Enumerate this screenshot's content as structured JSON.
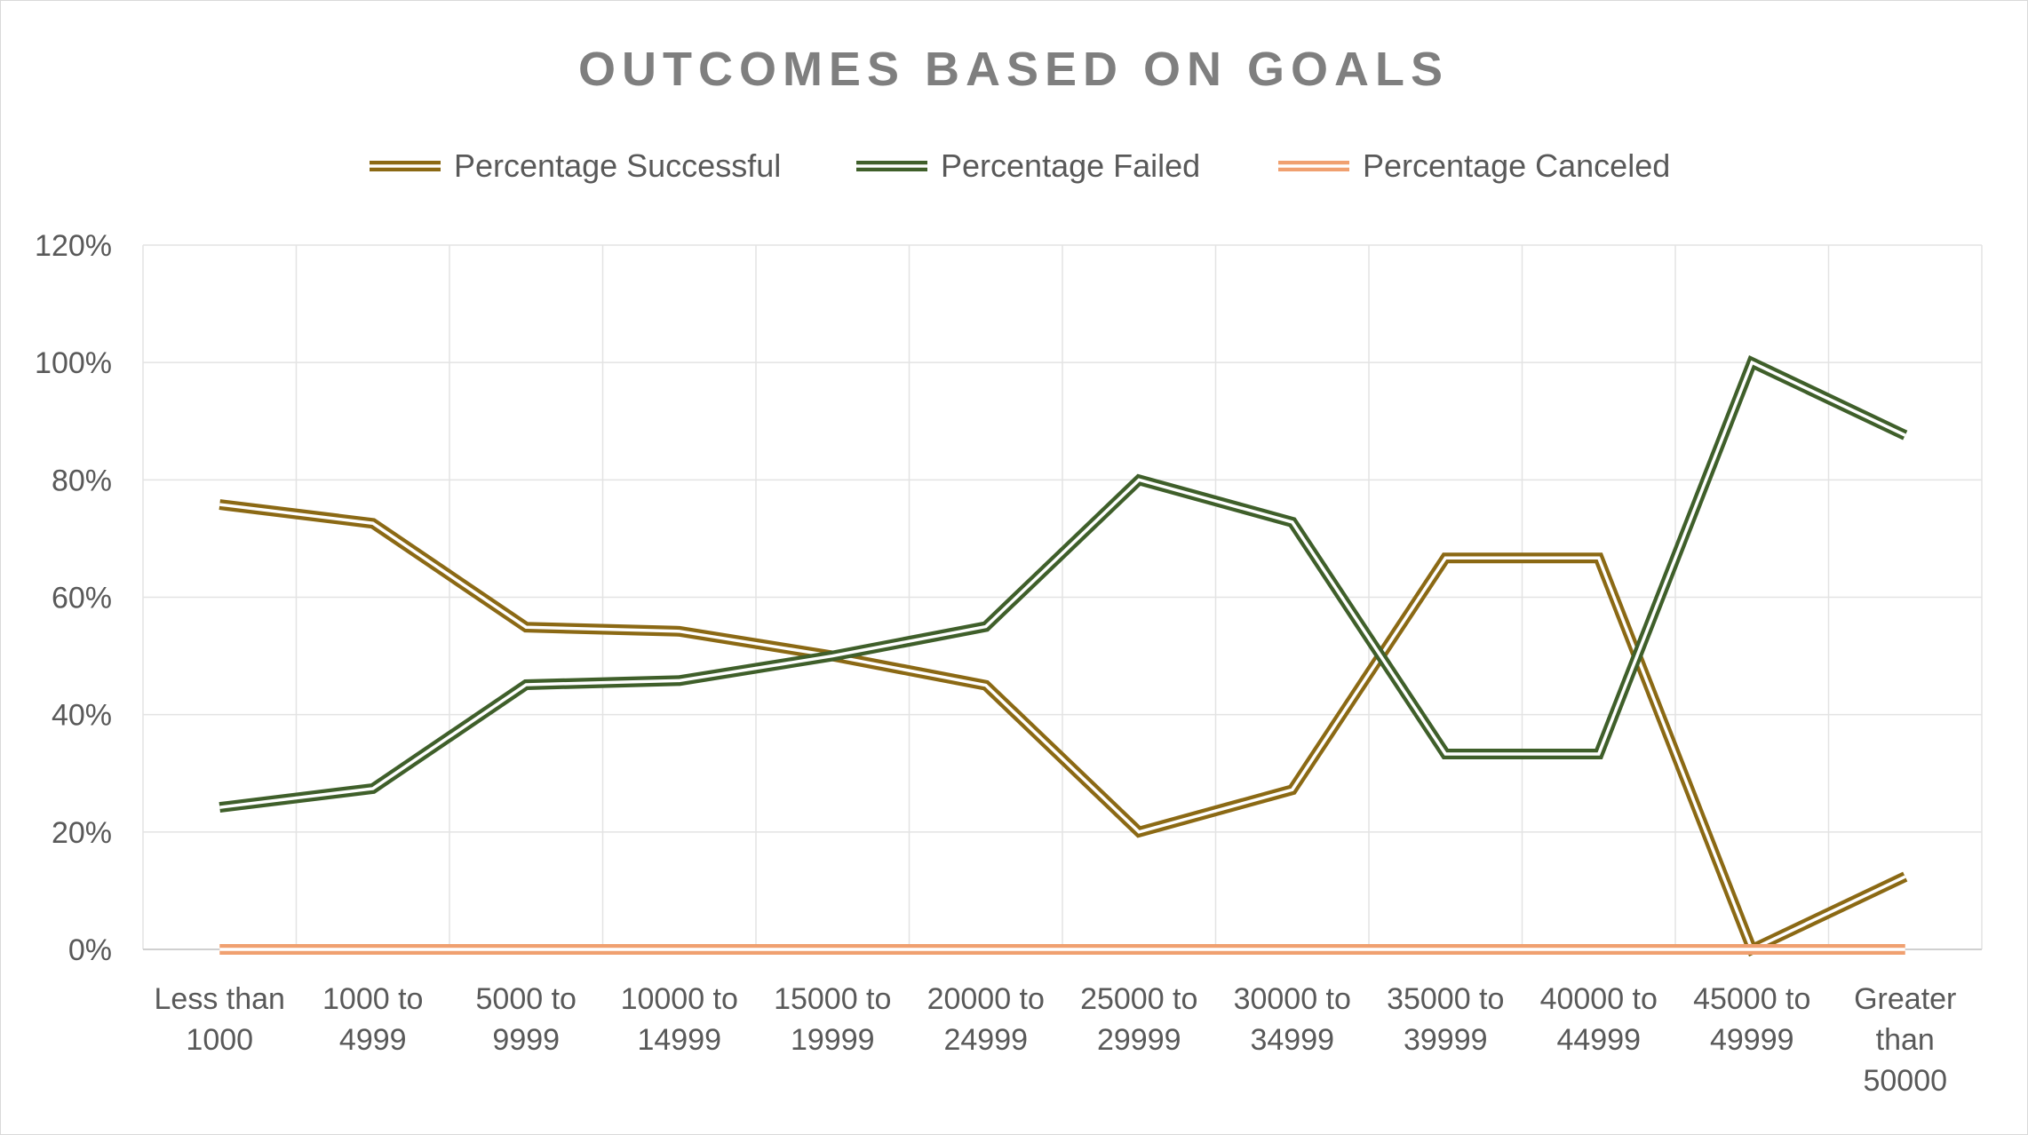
{
  "chart_data": {
    "type": "line",
    "title": "OUTCOMES BASED ON GOALS",
    "categories": [
      [
        "Less than",
        "1000"
      ],
      [
        "1000 to",
        "4999"
      ],
      [
        "5000 to",
        "9999"
      ],
      [
        "10000 to",
        "14999"
      ],
      [
        "15000 to",
        "19999"
      ],
      [
        "20000 to",
        "24999"
      ],
      [
        "25000 to",
        "29999"
      ],
      [
        "30000 to",
        "34999"
      ],
      [
        "35000 to",
        "39999"
      ],
      [
        "40000 to",
        "44999"
      ],
      [
        "45000 to",
        "49999"
      ],
      [
        "Greater",
        "than",
        "50000"
      ]
    ],
    "series": [
      {
        "name": "Percentage Successful",
        "color": "#8b6914",
        "values": [
          0.758,
          0.726,
          0.549,
          0.542,
          0.5,
          0.45,
          0.2,
          0.272,
          0.667,
          0.667,
          0.0,
          0.124
        ]
      },
      {
        "name": "Percentage Failed",
        "color": "#3f5f2a",
        "values": [
          0.242,
          0.274,
          0.451,
          0.458,
          0.5,
          0.55,
          0.8,
          0.728,
          0.333,
          0.333,
          1.0,
          0.876
        ]
      },
      {
        "name": "Percentage Canceled",
        "color": "#f0a070",
        "values": [
          0.0,
          0.0,
          0.0,
          0.0,
          0.0,
          0.0,
          0.0,
          0.0,
          0.0,
          0.0,
          0.0,
          0.0
        ]
      }
    ],
    "y_ticks": [
      "0%",
      "20%",
      "40%",
      "60%",
      "80%",
      "100%",
      "120%"
    ],
    "ylim": [
      0,
      1.2
    ],
    "grid": true,
    "legend_position": "top"
  }
}
